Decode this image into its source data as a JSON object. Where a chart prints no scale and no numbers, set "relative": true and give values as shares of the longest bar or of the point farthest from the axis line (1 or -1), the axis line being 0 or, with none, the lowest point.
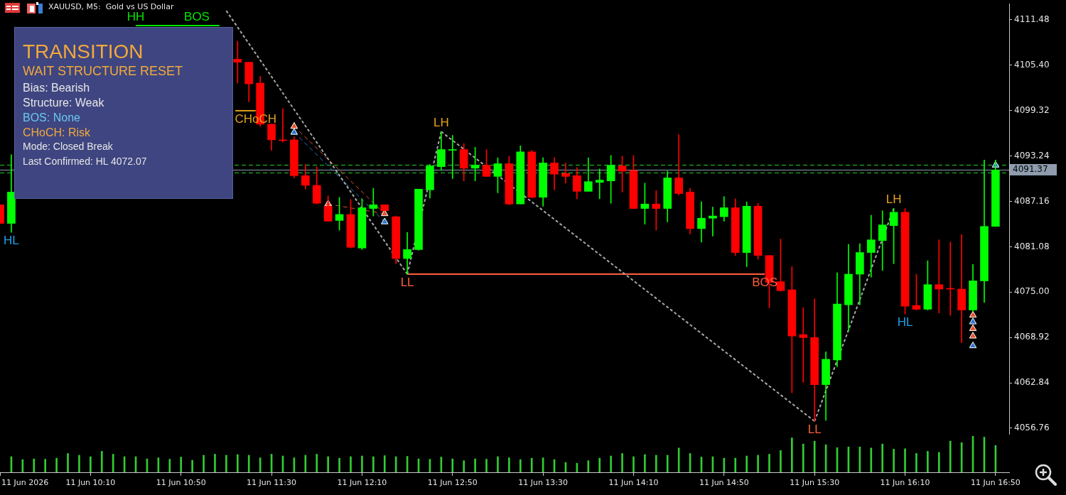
{
  "chart_data": [
    {
      "type": "candlestick",
      "title": "XAUUSD, M5:  Gold vs US Dollar",
      "x": [
        "2026-06-11T09:30",
        "2026-06-11T09:35",
        "2026-06-11T11:15",
        "2026-06-11T11:20",
        "2026-06-11T11:25",
        "2026-06-11T11:30",
        "2026-06-11T11:35",
        "2026-06-11T11:40",
        "2026-06-11T11:45",
        "2026-06-11T11:50",
        "2026-06-11T11:55",
        "2026-06-11T12:00",
        "2026-06-11T12:05",
        "2026-06-11T12:10",
        "2026-06-11T12:15",
        "2026-06-11T12:20",
        "2026-06-11T12:25",
        "2026-06-11T12:30",
        "2026-06-11T12:35",
        "2026-06-11T12:40",
        "2026-06-11T12:45",
        "2026-06-11T12:50",
        "2026-06-11T12:55",
        "2026-06-11T13:00",
        "2026-06-11T13:05",
        "2026-06-11T13:10",
        "2026-06-11T13:15",
        "2026-06-11T13:20",
        "2026-06-11T13:25",
        "2026-06-11T13:30",
        "2026-06-11T13:35",
        "2026-06-11T13:40",
        "2026-06-11T13:45",
        "2026-06-11T13:50",
        "2026-06-11T13:55",
        "2026-06-11T14:00",
        "2026-06-11T14:05",
        "2026-06-11T14:10",
        "2026-06-11T14:15",
        "2026-06-11T14:20",
        "2026-06-11T14:25",
        "2026-06-11T14:30",
        "2026-06-11T14:35",
        "2026-06-11T14:40",
        "2026-06-11T14:45",
        "2026-06-11T14:50",
        "2026-06-11T14:55",
        "2026-06-11T15:00",
        "2026-06-11T15:05",
        "2026-06-11T15:10",
        "2026-06-11T15:15",
        "2026-06-11T15:20",
        "2026-06-11T15:25",
        "2026-06-11T15:30",
        "2026-06-11T15:35",
        "2026-06-11T15:40",
        "2026-06-11T15:45",
        "2026-06-11T15:50",
        "2026-06-11T15:55",
        "2026-06-11T16:00",
        "2026-06-11T16:05",
        "2026-06-11T16:10",
        "2026-06-11T16:15",
        "2026-06-11T16:20",
        "2026-06-11T16:25",
        "2026-06-11T16:30",
        "2026-06-11T16:35",
        "2026-06-11T16:40",
        "2026-06-11T16:45",
        "2026-06-11T16:50"
      ],
      "ohlc": [
        [
          4086.7,
          4086.7,
          4084.2,
          4084.2
        ],
        [
          4084.2,
          4093.4,
          4083.0,
          4088.4
        ],
        [
          4106.2,
          4108.6,
          4103.0,
          4105.8
        ],
        [
          4105.8,
          4105.8,
          4100.5,
          4102.9
        ],
        [
          4103.0,
          4103.9,
          4097.2,
          4097.5
        ],
        [
          4097.5,
          4097.5,
          4094.0,
          4095.4
        ],
        [
          4095.4,
          4099.6,
          4095.1,
          4095.3
        ],
        [
          4095.4,
          4095.8,
          4090.3,
          4090.6
        ],
        [
          4090.6,
          4092.1,
          4088.8,
          4089.3
        ],
        [
          4089.3,
          4091.8,
          4086.8,
          4086.9
        ],
        [
          4086.5,
          4087.9,
          4084.5,
          4084.5
        ],
        [
          4084.6,
          4087.7,
          4083.3,
          4085.4
        ],
        [
          4085.4,
          4087.4,
          4080.9,
          4081.0
        ],
        [
          4080.9,
          4087.5,
          4080.7,
          4086.3
        ],
        [
          4086.2,
          4088.9,
          4085.2,
          4086.7
        ],
        [
          4086.7,
          4086.7,
          4085.9,
          4085.9
        ],
        [
          4085.1,
          4085.2,
          4078.8,
          4079.5
        ],
        [
          4079.5,
          4083.0,
          4077.4,
          4080.7
        ],
        [
          4080.7,
          4088.8,
          4080.6,
          4088.8
        ],
        [
          4088.7,
          4092.1,
          4087.6,
          4091.9
        ],
        [
          4091.8,
          4096.5,
          4091.3,
          4094.1
        ],
        [
          4094.0,
          4096.0,
          4090.2,
          4094.1
        ],
        [
          4094.1,
          4094.9,
          4089.9,
          4091.6
        ],
        [
          4091.6,
          4094.4,
          4089.9,
          4092.0
        ],
        [
          4092.0,
          4094.1,
          4090.5,
          4090.5
        ],
        [
          4090.5,
          4093.0,
          4088.3,
          4092.2
        ],
        [
          4092.2,
          4093.2,
          4086.7,
          4086.8
        ],
        [
          4086.8,
          4094.6,
          4086.8,
          4093.8
        ],
        [
          4093.8,
          4094.0,
          4087.6,
          4087.7
        ],
        [
          4087.7,
          4093.0,
          4086.5,
          4092.3
        ],
        [
          4092.3,
          4093.0,
          4088.7,
          4090.8
        ],
        [
          4090.9,
          4092.3,
          4089.6,
          4090.5
        ],
        [
          4090.6,
          4091.7,
          4087.5,
          4088.5
        ],
        [
          4088.5,
          4093.0,
          4088.5,
          4089.8
        ],
        [
          4089.7,
          4091.5,
          4087.5,
          4090.0
        ],
        [
          4089.9,
          4093.3,
          4086.9,
          4092.0
        ],
        [
          4091.9,
          4093.2,
          4088.4,
          4091.2
        ],
        [
          4091.3,
          4093.3,
          4086.2,
          4086.2
        ],
        [
          4086.2,
          4089.6,
          4084.1,
          4086.8
        ],
        [
          4086.8,
          4088.6,
          4083.3,
          4086.2
        ],
        [
          4086.2,
          4091.2,
          4084.4,
          4090.3
        ],
        [
          4090.3,
          4096.1,
          4088.0,
          4088.2
        ],
        [
          4088.4,
          4088.9,
          4082.8,
          4083.5
        ],
        [
          4083.5,
          4087.1,
          4081.7,
          4084.9
        ],
        [
          4084.9,
          4086.4,
          4082.5,
          4085.2
        ],
        [
          4085.1,
          4087.8,
          4084.5,
          4086.3
        ],
        [
          4086.3,
          4087.5,
          4079.9,
          4080.3
        ],
        [
          4080.3,
          4087.1,
          4078.4,
          4086.5
        ],
        [
          4086.5,
          4086.9,
          4079.4,
          4079.9
        ],
        [
          4079.9,
          4079.9,
          4072.9,
          4076.3
        ],
        [
          4076.4,
          4082.1,
          4075.1,
          4075.2
        ],
        [
          4075.3,
          4078.4,
          4061.5,
          4069.1
        ],
        [
          4069.3,
          4072.9,
          4062.9,
          4068.9
        ],
        [
          4068.9,
          4074.1,
          4057.7,
          4062.6
        ],
        [
          4062.6,
          4067.0,
          4057.8,
          4066.0
        ],
        [
          4065.9,
          4077.6,
          4065.0,
          4073.4
        ],
        [
          4073.3,
          4081.4,
          4069.8,
          4077.4
        ],
        [
          4077.4,
          4081.5,
          4073.3,
          4080.3
        ],
        [
          4080.3,
          4085.3,
          4077.0,
          4082.0
        ],
        [
          4081.9,
          4085.9,
          4077.9,
          4084.0
        ],
        [
          4083.9,
          4086.2,
          4078.8,
          4085.7
        ],
        [
          4085.7,
          4086.2,
          4072.07,
          4073.1
        ],
        [
          4073.2,
          4077.4,
          4072.6,
          4072.7
        ],
        [
          4072.7,
          4079.2,
          4072.6,
          4076.0
        ],
        [
          4076.0,
          4082.0,
          4072.2,
          4075.4
        ],
        [
          4075.5,
          4081.7,
          4071.9,
          4075.4
        ],
        [
          4075.4,
          4082.7,
          4068.2,
          4072.6
        ],
        [
          4072.6,
          4078.7,
          4072.4,
          4076.5
        ],
        [
          4076.5,
          4092.7,
          4073.6,
          4083.8
        ],
        [
          4083.8,
          4092.7,
          4083.8,
          4091.37
        ]
      ],
      "colors": [
        "#ff0000",
        "#00ff00",
        "#ff0000",
        "#ff0000",
        "#ff0000",
        "#ff0000",
        "#ff0000",
        "#ff0000",
        "#ff0000",
        "#ff0000",
        "#ff0000",
        "#00ff00",
        "#ff0000",
        "#00ff00",
        "#00ff00",
        "#ff0000",
        "#ff0000",
        "#00ff00",
        "#00ff00",
        "#00ff00",
        "#00ff00",
        "#00ff00",
        "#ff0000",
        "#00ff00",
        "#ff0000",
        "#00ff00",
        "#ff0000",
        "#00ff00",
        "#ff0000",
        "#00ff00",
        "#ff0000",
        "#ff0000",
        "#ff0000",
        "#00ff00",
        "#00ff00",
        "#00ff00",
        "#ff0000",
        "#ff0000",
        "#00ff00",
        "#ff0000",
        "#00ff00",
        "#ff0000",
        "#ff0000",
        "#00ff00",
        "#00ff00",
        "#00ff00",
        "#ff0000",
        "#00ff00",
        "#ff0000",
        "#ff0000",
        "#ff0000",
        "#ff0000",
        "#ff0000",
        "#ff0000",
        "#00ff00",
        "#00ff00",
        "#00ff00",
        "#00ff00",
        "#00ff00",
        "#00ff00",
        "#00ff00",
        "#ff0000",
        "#ff0000",
        "#00ff00",
        "#ff0000",
        "#ff0000",
        "#ff0000",
        "#00ff00",
        "#00ff00",
        "#00ff00"
      ],
      "xlim": [
        "2026-06-11T09:30",
        "2026-06-11T16:56"
      ],
      "ylim": [
        4055.9,
        4113.66
      ],
      "yticks": [
        4056.76,
        4062.84,
        4068.92,
        {
          "value": 4075,
          "label": "4075.00"
        },
        4081.08,
        4087.16,
        4093.24,
        4099.32,
        {
          "value": 4105.4,
          "label": "4105.40"
        },
        4111.48
      ],
      "tick_labels": "y",
      "series": [
        {
          "type": "line",
          "color": "#00e600",
          "x": [
            "2026-06-11T10:30",
            "2026-06-11T11:07"
          ],
          "values": [
            4110.7,
            4110.7
          ]
        },
        {
          "type": "line",
          "color": "#e0a21c",
          "x": [
            "2026-06-11T11:14",
            "2026-06-11T11:23"
          ],
          "values": [
            4099.3,
            4099.3
          ]
        },
        {
          "type": "line",
          "color": "#ff5f3f",
          "x": [
            "2026-06-11T12:30",
            "2026-06-11T15:08"
          ],
          "values": [
            4077.4,
            4077.4
          ]
        },
        {
          "type": "line",
          "color": "#a8a8a8",
          "line_style": "dotted",
          "x": [
            "2026-06-11T11:10",
            "2026-06-11T12:30",
            "2026-06-11T12:45",
            "2026-06-11T15:30",
            "2026-06-11T16:05"
          ],
          "values": [
            4112.7,
            4077.4,
            4096.5,
            4057.7,
            4086.2
          ]
        },
        {
          "type": "line",
          "color": "#e0522a",
          "line_style": "dashed",
          "x": [
            "2026-06-11T11:40",
            "2026-06-11T12:20"
          ],
          "values": [
            4097.2,
            4085.5
          ]
        },
        {
          "type": "line",
          "color": "#2a78d2",
          "line_style": "dashed",
          "x": [
            "2026-06-11T11:40",
            "2026-06-11T12:20"
          ],
          "values": [
            4096.4,
            4084.4
          ]
        },
        {
          "type": "line",
          "color": "#e0522a",
          "line_style": "dashed",
          "x": [
            "2026-06-11T11:55",
            "2026-06-11T12:20"
          ],
          "values": [
            4086.8,
            4085.5
          ]
        },
        {
          "type": "scatter",
          "color": "#e8502a",
          "marker": "triangle",
          "x": [
            "2026-06-11T11:40",
            "2026-06-11T11:55",
            "2026-06-11T12:20",
            "2026-06-11T16:40",
            "2026-06-11T16:40",
            "2026-06-11T16:40"
          ],
          "values": [
            4097.2,
            4086.8,
            4085.5,
            4071.9,
            4070.1,
            4069.1
          ]
        },
        {
          "type": "scatter",
          "color": "#2a78d2",
          "marker": "triangle",
          "x": [
            "2026-06-11T11:40",
            "2026-06-11T12:20",
            "2026-06-11T16:40",
            "2026-06-11T16:40",
            "2026-06-11T16:50"
          ],
          "values": [
            4096.4,
            4084.4,
            4071.0,
            4067.8,
            4092.0
          ]
        }
      ],
      "ref_lines": [
        {
          "axis": "y",
          "value": 4092.1,
          "color": "#22cc22",
          "line_style": "dashed"
        },
        {
          "axis": "y",
          "value": 4091.0,
          "color": "#22cc22",
          "line_style": "dashed"
        },
        {
          "axis": "y",
          "value": 4091.37,
          "label": "4091.37",
          "color": "#8e9cae"
        }
      ],
      "annotations": [
        {
          "text": "HH",
          "x": "2026-06-11T10:30",
          "y": 4110.7
        },
        {
          "text": "BOS",
          "x": "2026-06-11T10:57",
          "y": 4110.7
        },
        {
          "text": "HL",
          "x": "2026-06-11T09:35",
          "y": 4083.0
        },
        {
          "text": "CHoCH",
          "x": "2026-06-11T11:23",
          "y": 4099.3
        },
        {
          "text": "LH",
          "x": "2026-06-11T12:45",
          "y": 4096.5
        },
        {
          "text": "LL",
          "x": "2026-06-11T12:30",
          "y": 4077.4
        },
        {
          "text": "BOS",
          "x": "2026-06-11T15:08",
          "y": 4077.4
        },
        {
          "text": "LL",
          "x": "2026-06-11T15:30",
          "y": 4057.7
        },
        {
          "text": "LH",
          "x": "2026-06-11T16:05",
          "y": 4086.2
        },
        {
          "text": "HL",
          "x": "2026-06-11T16:10",
          "y": 4072.07
        },
        "TRANSITION",
        "WAIT STRUCTURE RESET",
        "Bias: Bearish",
        "Structure: Weak",
        "BOS: None",
        "CHoCH: Risk",
        "Mode: Closed Break",
        "Last Confirmed: HL 4072.07"
      ]
    },
    {
      "type": "bar",
      "relative": true,
      "color": "#32cd32",
      "x": [
        "2026-06-11T09:35",
        "2026-06-11T09:40",
        "2026-06-11T09:45",
        "2026-06-11T09:50",
        "2026-06-11T09:55",
        "2026-06-11T10:00",
        "2026-06-11T10:05",
        "2026-06-11T10:10",
        "2026-06-11T10:15",
        "2026-06-11T10:20",
        "2026-06-11T10:25",
        "2026-06-11T10:30",
        "2026-06-11T10:35",
        "2026-06-11T10:40",
        "2026-06-11T10:45",
        "2026-06-11T10:50",
        "2026-06-11T10:55",
        "2026-06-11T11:00",
        "2026-06-11T11:05",
        "2026-06-11T11:10",
        "2026-06-11T11:15",
        "2026-06-11T11:20",
        "2026-06-11T11:25",
        "2026-06-11T11:30",
        "2026-06-11T11:35",
        "2026-06-11T11:40",
        "2026-06-11T11:45",
        "2026-06-11T11:50",
        "2026-06-11T11:55",
        "2026-06-11T12:00",
        "2026-06-11T12:05",
        "2026-06-11T12:10",
        "2026-06-11T12:15",
        "2026-06-11T12:20",
        "2026-06-11T12:25",
        "2026-06-11T12:30",
        "2026-06-11T12:35",
        "2026-06-11T12:40",
        "2026-06-11T12:45",
        "2026-06-11T12:50",
        "2026-06-11T12:55",
        "2026-06-11T13:00",
        "2026-06-11T13:05",
        "2026-06-11T13:10",
        "2026-06-11T13:15",
        "2026-06-11T13:20",
        "2026-06-11T13:25",
        "2026-06-11T13:30",
        "2026-06-11T13:35",
        "2026-06-11T13:40",
        "2026-06-11T13:45",
        "2026-06-11T13:50",
        "2026-06-11T13:55",
        "2026-06-11T14:00",
        "2026-06-11T14:05",
        "2026-06-11T14:10",
        "2026-06-11T14:15",
        "2026-06-11T14:20",
        "2026-06-11T14:25",
        "2026-06-11T14:30",
        "2026-06-11T14:35",
        "2026-06-11T14:40",
        "2026-06-11T14:45",
        "2026-06-11T14:50",
        "2026-06-11T14:55",
        "2026-06-11T15:00",
        "2026-06-11T15:05",
        "2026-06-11T15:10",
        "2026-06-11T15:15",
        "2026-06-11T15:20",
        "2026-06-11T15:25",
        "2026-06-11T15:30",
        "2026-06-11T15:35",
        "2026-06-11T15:40",
        "2026-06-11T15:45",
        "2026-06-11T15:50",
        "2026-06-11T15:55",
        "2026-06-11T16:00",
        "2026-06-11T16:05",
        "2026-06-11T16:10",
        "2026-06-11T16:15",
        "2026-06-11T16:20",
        "2026-06-11T16:25",
        "2026-06-11T16:30",
        "2026-06-11T16:35",
        "2026-06-11T16:40",
        "2026-06-11T16:45",
        "2026-06-11T16:50"
      ],
      "values": [
        0.43,
        0.35,
        0.37,
        0.36,
        0.39,
        0.52,
        0.47,
        0.43,
        0.58,
        0.5,
        0.43,
        0.43,
        0.37,
        0.4,
        0.36,
        0.42,
        0.33,
        0.47,
        0.5,
        0.47,
        0.49,
        0.47,
        0.4,
        0.5,
        0.45,
        0.4,
        0.47,
        0.5,
        0.43,
        0.39,
        0.43,
        0.45,
        0.43,
        0.46,
        0.43,
        0.44,
        0.37,
        0.36,
        0.42,
        0.37,
        0.32,
        0.37,
        0.36,
        0.43,
        0.4,
        0.35,
        0.39,
        0.4,
        0.35,
        0.27,
        0.25,
        0.32,
        0.39,
        0.45,
        0.52,
        0.43,
        0.49,
        0.47,
        0.47,
        0.67,
        0.52,
        0.42,
        0.43,
        0.39,
        0.39,
        0.45,
        0.47,
        0.5,
        0.6,
        0.95,
        0.78,
        0.86,
        0.76,
        0.68,
        0.7,
        0.7,
        0.67,
        0.78,
        0.64,
        0.65,
        0.52,
        0.58,
        0.55,
        0.86,
        0.82,
        1,
        0.97,
        0.74
      ],
      "xlim": [
        "2026-06-11T09:30",
        "2026-06-11T16:56"
      ],
      "xticks": [
        {
          "value": "2026-06-11T09:30",
          "label": "11 Jun 2026"
        },
        {
          "value": "2026-06-11T10:10",
          "label": "11 Jun 10:10"
        },
        {
          "value": "2026-06-11T10:50",
          "label": "11 Jun 10:50"
        },
        {
          "value": "2026-06-11T11:30",
          "label": "11 Jun 11:30"
        },
        {
          "value": "2026-06-11T12:10",
          "label": "11 Jun 12:10"
        },
        {
          "value": "2026-06-11T12:50",
          "label": "11 Jun 12:50"
        },
        {
          "value": "2026-06-11T13:30",
          "label": "11 Jun 13:30"
        },
        {
          "value": "2026-06-11T14:10",
          "label": "11 Jun 14:10"
        },
        {
          "value": "2026-06-11T14:50",
          "label": "11 Jun 14:50"
        },
        {
          "value": "2026-06-11T15:30",
          "label": "11 Jun 15:30"
        },
        {
          "value": "2026-06-11T16:10",
          "label": "11 Jun 16:10"
        },
        {
          "value": "2026-06-11T16:50",
          "label": "11 Jun 16:50"
        }
      ],
      "tick_labels": "x"
    }
  ]
}
